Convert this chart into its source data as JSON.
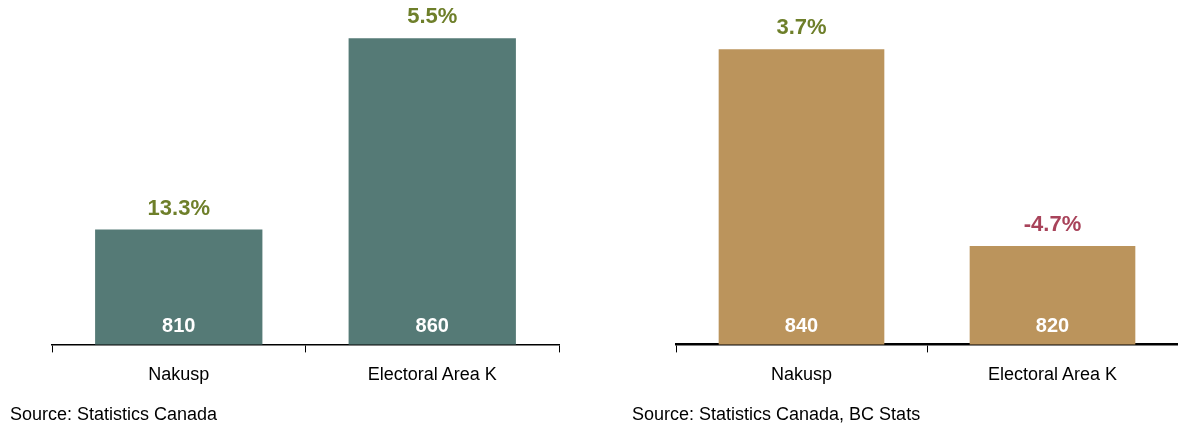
{
  "chart_data": [
    {
      "type": "bar",
      "categories": [
        "Nakusp",
        "Electoral Area K"
      ],
      "values": [
        810,
        860
      ],
      "color": "#557a76",
      "ylim": [
        780,
        870
      ],
      "tick_labels": "x",
      "data_labels": true,
      "annotations": [
        {
          "text": "13.3%",
          "x": "Nakusp",
          "y": 810
        },
        {
          "text": "5.5%",
          "x": "Electoral Area K",
          "y": 860
        },
        "Source: Statistics Canada"
      ]
    },
    {
      "type": "bar",
      "categories": [
        "Nakusp",
        "Electoral Area K"
      ],
      "values": [
        840,
        820
      ],
      "color": "#bb945c",
      "ylim": [
        810,
        845
      ],
      "tick_labels": "x",
      "data_labels": true,
      "annotations": [
        {
          "text": "3.7%",
          "x": "Nakusp",
          "y": 840
        },
        {
          "text": "-4.7%",
          "x": "Electoral Area K",
          "y": 820
        },
        "Source: Statistics Canada, BC Stats"
      ]
    }
  ]
}
